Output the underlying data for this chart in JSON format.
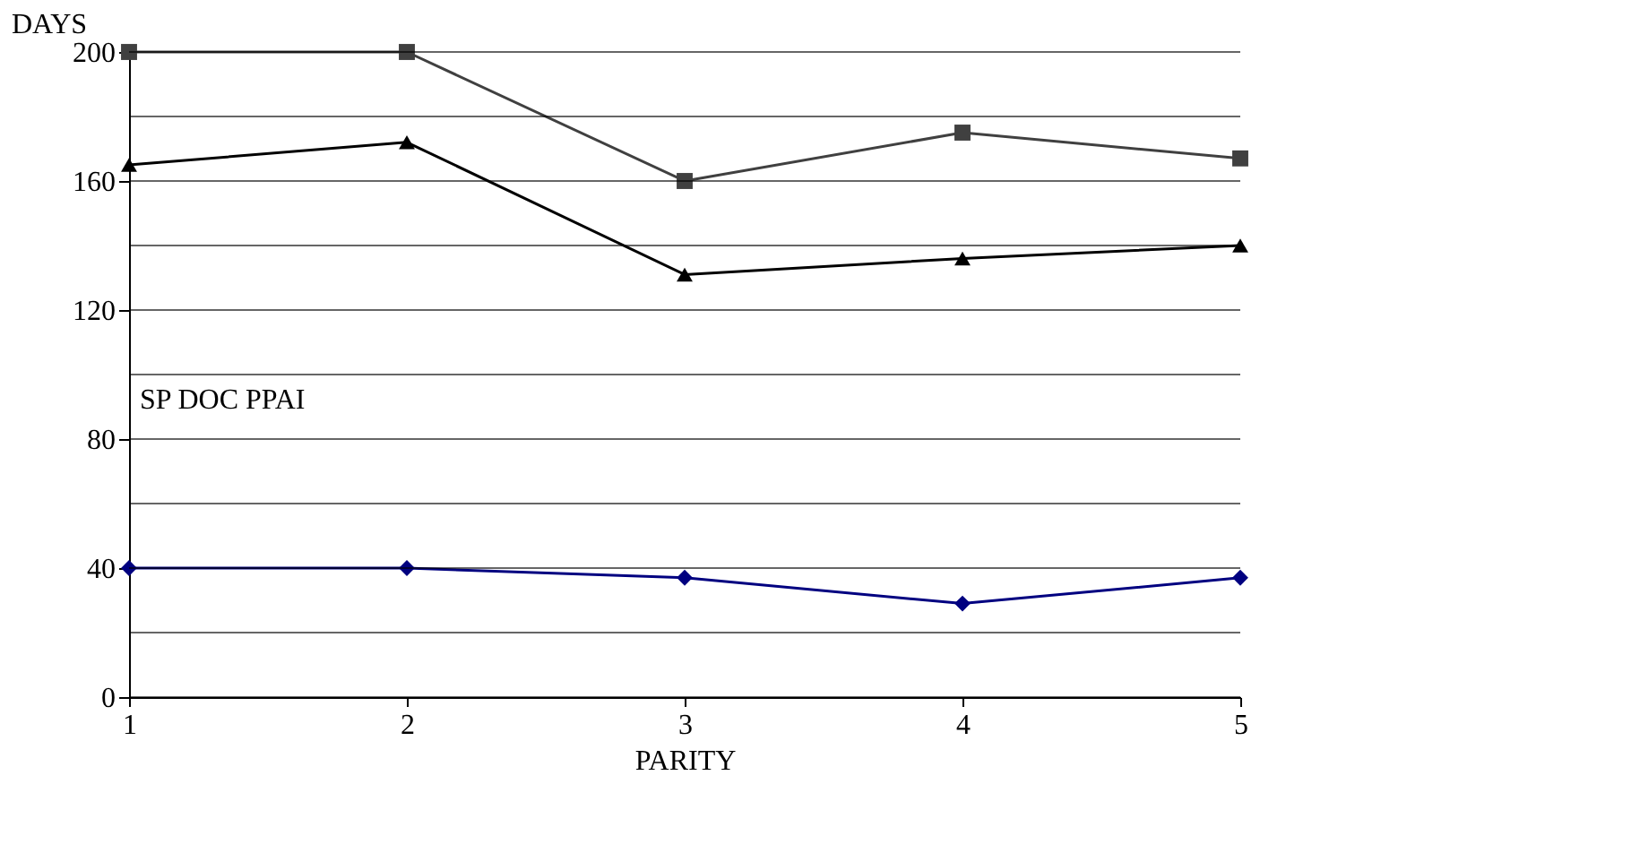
{
  "chart_data": {
    "type": "line",
    "xlabel": "PARITY",
    "ylabel": "DAYS",
    "categories": [
      "1",
      "2",
      "3",
      "4",
      "5"
    ],
    "series": [
      {
        "color": "#000080",
        "marker": "diamond",
        "values": [
          40,
          40,
          37,
          29,
          37
        ]
      },
      {
        "color": "#404040",
        "marker": "square",
        "values": [
          200,
          200,
          160,
          175,
          167
        ]
      },
      {
        "color": "#000000",
        "marker": "triangle",
        "values": [
          165,
          172,
          131,
          136,
          140
        ]
      }
    ],
    "ylim": [
      0,
      200
    ],
    "yticks": [
      0,
      {
        "value": 20,
        "label": null
      },
      40,
      {
        "value": 60,
        "label": null
      },
      80,
      {
        "value": 100,
        "label": null
      },
      120,
      {
        "value": 140,
        "label": null
      },
      160,
      {
        "value": 180,
        "label": null
      },
      200
    ],
    "grid": "y",
    "line_style": "solid",
    "annotations": [
      "SP DOC PPAI"
    ]
  }
}
